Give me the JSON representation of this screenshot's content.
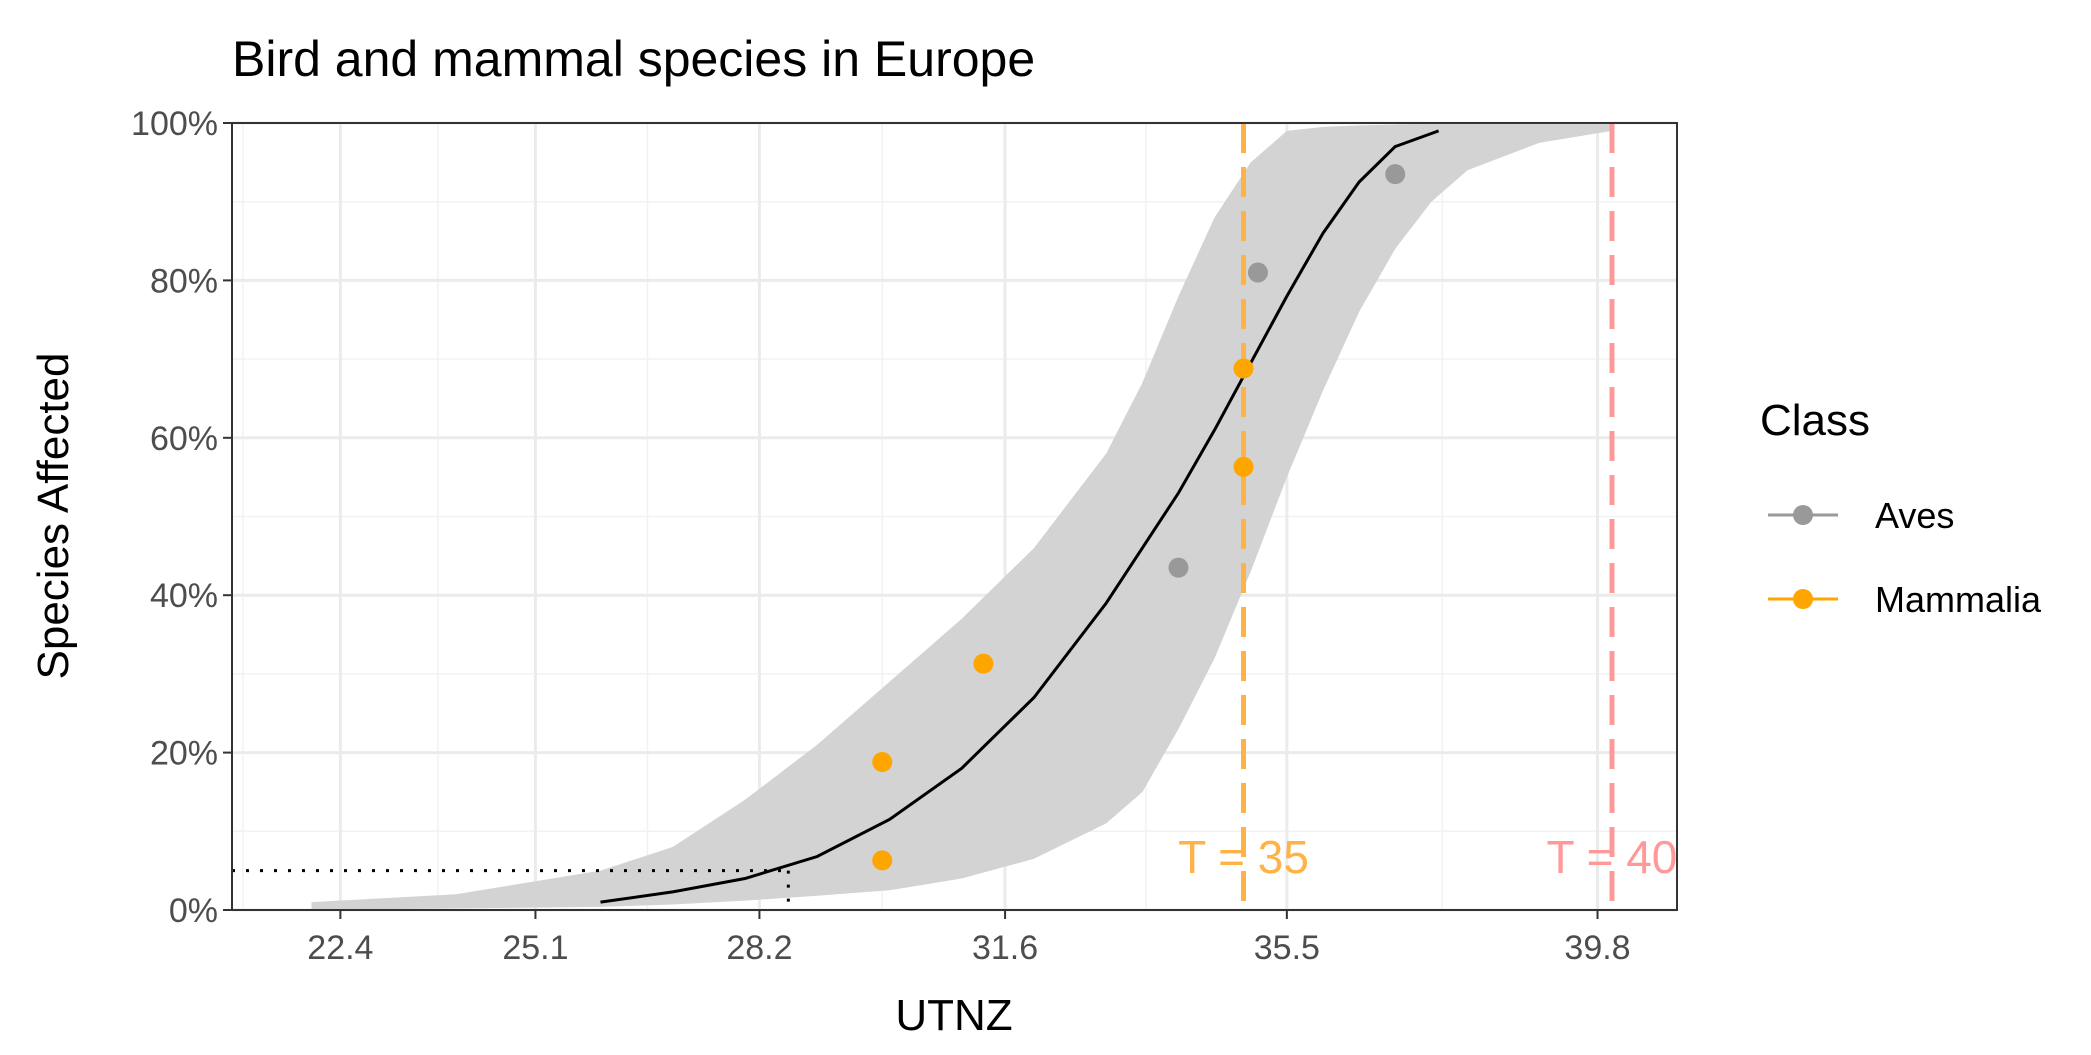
{
  "chart_data": {
    "type": "scatter",
    "title": "Bird and mammal species in Europe",
    "xlabel": "UTNZ",
    "ylabel": "Species Affected",
    "x_tick_labels": [
      "22.4",
      "25.1",
      "28.2",
      "31.6",
      "35.5",
      "39.8"
    ],
    "x_tick_values": [
      22.4,
      25.1,
      28.2,
      31.6,
      35.5,
      39.8
    ],
    "xlim": [
      20.9,
      40.9
    ],
    "y_tick_labels": [
      "0%",
      "20%",
      "40%",
      "60%",
      "80%",
      "100%"
    ],
    "y_tick_values": [
      0,
      20,
      40,
      60,
      80,
      100
    ],
    "ylim": [
      0,
      100
    ],
    "grid": true,
    "legend": {
      "title": "Class",
      "position": "right",
      "entries": [
        {
          "name": "Aves",
          "color": "#999999"
        },
        {
          "name": "Mammalia",
          "color": "#FFA500"
        }
      ]
    },
    "series": [
      {
        "name": "Aves",
        "color": "#999999",
        "points": [
          {
            "x": 34.0,
            "y": 43.5
          },
          {
            "x": 35.1,
            "y": 81.0
          },
          {
            "x": 37.0,
            "y": 93.5
          }
        ]
      },
      {
        "name": "Mammalia",
        "color": "#FFA500",
        "points": [
          {
            "x": 29.9,
            "y": 6.3
          },
          {
            "x": 29.9,
            "y": 18.8
          },
          {
            "x": 31.3,
            "y": 31.3
          },
          {
            "x": 34.9,
            "y": 56.3
          },
          {
            "x": 34.9,
            "y": 68.8
          }
        ]
      }
    ],
    "fit_curve": {
      "name": "fitted curve",
      "color": "#000000",
      "x": [
        26.0,
        27.0,
        28.0,
        29.0,
        30.0,
        31.0,
        32.0,
        33.0,
        34.0,
        34.5,
        35.0,
        35.5,
        36.0,
        36.5,
        37.0,
        37.6
      ],
      "y": [
        1.0,
        2.3,
        4.0,
        6.8,
        11.5,
        18.0,
        27.0,
        39.0,
        53.0,
        61.0,
        69.5,
        78.0,
        86.0,
        92.5,
        97.0,
        99.0
      ]
    },
    "confidence_band": {
      "color": "#D3D3D3",
      "x": [
        22.0,
        24.0,
        26.0,
        27.0,
        28.0,
        29.0,
        30.0,
        31.0,
        32.0,
        33.0,
        33.5,
        34.0,
        34.5,
        35.0,
        35.5,
        36.0,
        36.5,
        37.0,
        37.5,
        38.0,
        39.0,
        40.0
      ],
      "lower": [
        0.0,
        0.2,
        0.4,
        0.7,
        1.2,
        1.8,
        2.5,
        4.0,
        6.5,
        11.0,
        15.0,
        23.0,
        32.0,
        43.0,
        55.0,
        66.0,
        76.0,
        84.0,
        90.0,
        94.0,
        97.5,
        99.0
      ],
      "upper": [
        1.0,
        2.0,
        5.0,
        8.0,
        14.0,
        21.0,
        29.0,
        37.0,
        46.0,
        58.0,
        67.0,
        78.0,
        88.0,
        95.0,
        99.0,
        99.5,
        99.7,
        99.8,
        99.9,
        100.0,
        100.0,
        100.0
      ]
    },
    "threshold_lines": [
      {
        "label": "T = 35",
        "x": 34.9,
        "color": "#FFB347"
      },
      {
        "label": "T = 40",
        "x": 40.0,
        "color": "#FF9999"
      }
    ],
    "reference": {
      "x": 28.6,
      "y": 5.0,
      "style": "dotted"
    }
  }
}
